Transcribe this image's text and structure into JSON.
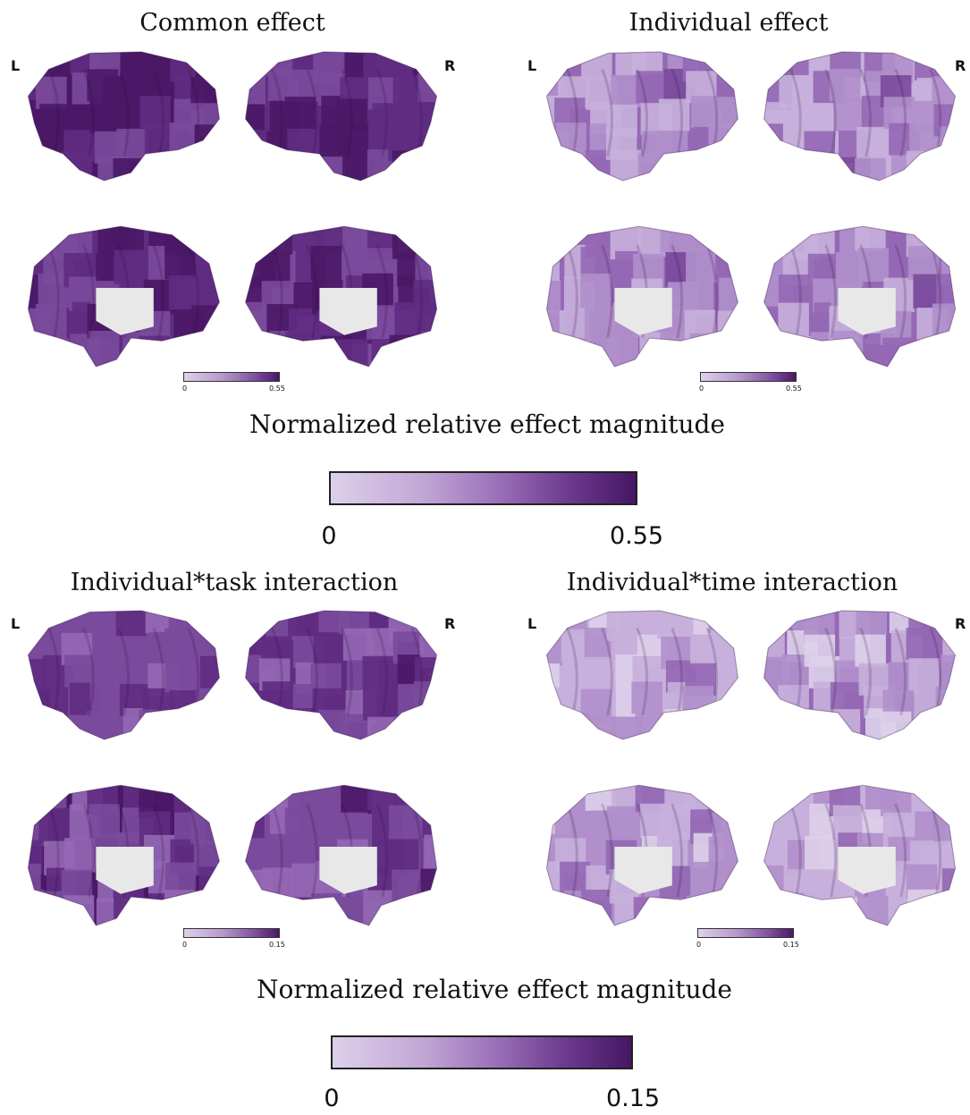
{
  "panels": [
    {
      "title": "Common effect",
      "left_label": "L",
      "right_label": "R",
      "cbar_min": "0",
      "cbar_max": "0.55",
      "intensity": 0.85
    },
    {
      "title": "Individual effect",
      "left_label": "L",
      "right_label": "R",
      "cbar_min": "0",
      "cbar_max": "0.55",
      "intensity": 0.35
    },
    {
      "title": "Individual*task interaction",
      "left_label": "L",
      "right_label": "R",
      "cbar_min": "0",
      "cbar_max": "0.15",
      "intensity": 0.7
    },
    {
      "title": "Individual*time interaction",
      "left_label": "L",
      "right_label": "R",
      "cbar_min": "0",
      "cbar_max": "0.15",
      "intensity": 0.25
    }
  ],
  "legends": [
    {
      "title": "Normalized relative effect magnitude",
      "min": "0",
      "max": "0.55"
    },
    {
      "title": "Normalized relative effect magnitude",
      "min": "0",
      "max": "0.15"
    }
  ],
  "colors": {
    "low": "#ddd0ea",
    "mid": "#9a6fb8",
    "high": "#461664",
    "medial_wall": "#e8e8e8"
  }
}
